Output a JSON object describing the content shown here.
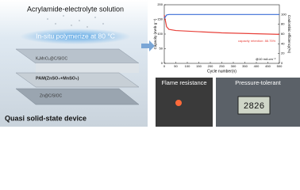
{
  "left": {
    "top_label": "Acrylamide-electrolyte solution",
    "step_label": "In-situ polymerize at 80 °C",
    "layers": [
      "KₓMnO₂@C/SIOC",
      "PAM(ZnSO₄+MnSO₄)",
      "Zn@C/SIOC"
    ],
    "bottom_label": "Quasi solid-state device"
  },
  "chart_data": {
    "type": "line",
    "x_label": "Cycle number(n)",
    "y_label": "Capacity (mAh g⁻¹)",
    "y2_label": "Coulombic efficiency(%)",
    "x": [
      0,
      10,
      20,
      50,
      100,
      150,
      200,
      250,
      300,
      350,
      400,
      450,
      500
    ],
    "series": [
      {
        "name": "Capacity",
        "color": "#e8413a",
        "values": [
          165,
          125,
          116,
          112,
          110,
          108,
          106,
          104,
          103,
          102,
          101,
          100,
          99
        ]
      },
      {
        "name": "Coulombic efficiency",
        "color": "#3b6fd6",
        "axis": "y2",
        "values": [
          92,
          99,
          100,
          100,
          100,
          100,
          100,
          100,
          100,
          100,
          100,
          100,
          100
        ]
      }
    ],
    "xlim": [
      0,
      500
    ],
    "xticks": [
      0,
      50,
      100,
      150,
      200,
      250,
      300,
      350,
      400,
      450,
      500
    ],
    "ylim": [
      0,
      200
    ],
    "yticks": [
      0,
      50,
      100,
      150,
      200
    ],
    "y2lim": [
      0,
      120
    ],
    "y2ticks": [
      0,
      20,
      40,
      60,
      80,
      100
    ],
    "annotations": [
      "capacity retention: 88.75%",
      "@10 mA cm⁻²"
    ]
  },
  "photos": {
    "titles": [
      "Flame resistance",
      "Pressure-tolerant"
    ],
    "display": "2826"
  }
}
